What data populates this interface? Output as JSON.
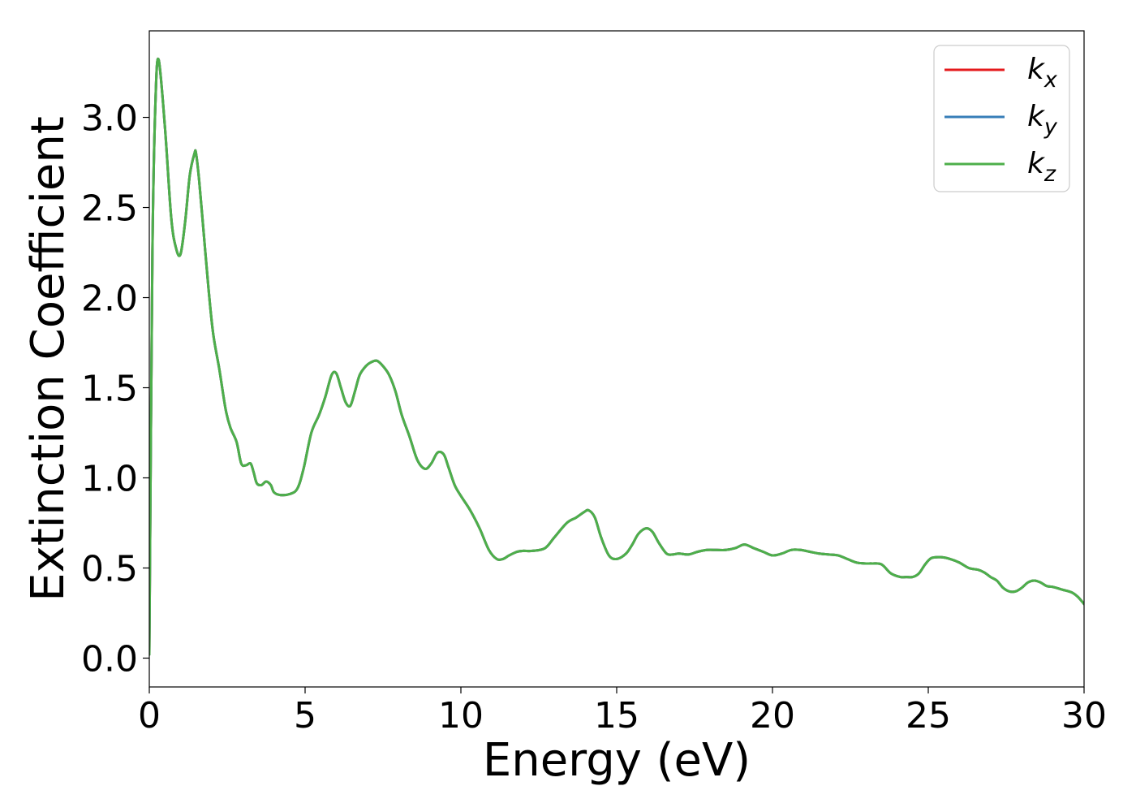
{
  "chart_data": {
    "type": "line",
    "title": "",
    "xlabel": "Energy (eV)",
    "ylabel": "Extinction Coefficient",
    "xlim": [
      0,
      30
    ],
    "ylim": [
      -0.16,
      3.48
    ],
    "xticks": [
      0,
      5,
      10,
      15,
      20,
      25,
      30
    ],
    "xtick_labels": [
      "0",
      "5",
      "10",
      "15",
      "20",
      "25",
      "30"
    ],
    "yticks": [
      0.0,
      0.5,
      1.0,
      1.5,
      2.0,
      2.5,
      3.0
    ],
    "ytick_labels": [
      "0.0",
      "0.5",
      "1.0",
      "1.5",
      "2.0",
      "2.5",
      "3.0"
    ],
    "grid": false,
    "legend_position": "top-right",
    "series": [
      {
        "name": "k",
        "subscript": "x",
        "color": "#e41a1c",
        "x": [
          0,
          0.1,
          0.2,
          0.3,
          0.5,
          0.7,
          0.85,
          1.0,
          1.15,
          1.3,
          1.45,
          1.5,
          1.6,
          1.75,
          1.9,
          2.05,
          2.25,
          2.45,
          2.6,
          2.8,
          2.95,
          3.1,
          3.25,
          3.35,
          3.45,
          3.6,
          3.75,
          3.9,
          4.0,
          4.2,
          4.5,
          4.75,
          4.95,
          5.2,
          5.45,
          5.65,
          5.85,
          6.0,
          6.15,
          6.3,
          6.45,
          6.6,
          6.75,
          6.95,
          7.1,
          7.3,
          7.5,
          7.7,
          7.9,
          8.1,
          8.35,
          8.6,
          8.85,
          9.05,
          9.25,
          9.45,
          9.6,
          9.8,
          10.0,
          10.3,
          10.6,
          10.9,
          11.15,
          11.35,
          11.55,
          11.8,
          12.0,
          12.3,
          12.7,
          13.0,
          13.4,
          13.7,
          13.95,
          14.1,
          14.3,
          14.5,
          14.75,
          15.0,
          15.3,
          15.5,
          15.7,
          15.95,
          16.15,
          16.35,
          16.6,
          16.8,
          17.0,
          17.3,
          17.6,
          17.9,
          18.2,
          18.5,
          18.8,
          19.1,
          19.4,
          19.7,
          20.0,
          20.3,
          20.6,
          20.9,
          21.2,
          21.5,
          21.8,
          22.1,
          22.4,
          22.7,
          23.0,
          23.2,
          23.5,
          23.8,
          24.1,
          24.3,
          24.5,
          24.7,
          24.9,
          25.1,
          25.4,
          25.7,
          26.0,
          26.3,
          26.6,
          26.8,
          27.0,
          27.2,
          27.4,
          27.6,
          27.8,
          28.0,
          28.2,
          28.4,
          28.6,
          28.8,
          29.0,
          29.3,
          29.6,
          29.8,
          30.0
        ],
        "y": [
          0.02,
          2.25,
          3.1,
          3.32,
          2.95,
          2.45,
          2.28,
          2.24,
          2.42,
          2.68,
          2.8,
          2.8,
          2.65,
          2.35,
          2.05,
          1.8,
          1.6,
          1.38,
          1.28,
          1.2,
          1.08,
          1.07,
          1.08,
          1.03,
          0.97,
          0.96,
          0.98,
          0.96,
          0.92,
          0.905,
          0.91,
          0.94,
          1.05,
          1.25,
          1.35,
          1.45,
          1.57,
          1.58,
          1.5,
          1.42,
          1.4,
          1.48,
          1.57,
          1.62,
          1.64,
          1.65,
          1.62,
          1.57,
          1.48,
          1.35,
          1.23,
          1.1,
          1.05,
          1.08,
          1.14,
          1.13,
          1.06,
          0.96,
          0.9,
          0.82,
          0.72,
          0.6,
          0.55,
          0.55,
          0.57,
          0.59,
          0.595,
          0.595,
          0.61,
          0.67,
          0.75,
          0.78,
          0.81,
          0.82,
          0.78,
          0.67,
          0.57,
          0.55,
          0.58,
          0.63,
          0.69,
          0.72,
          0.7,
          0.64,
          0.58,
          0.575,
          0.58,
          0.575,
          0.59,
          0.6,
          0.6,
          0.6,
          0.61,
          0.63,
          0.61,
          0.59,
          0.57,
          0.58,
          0.6,
          0.6,
          0.59,
          0.58,
          0.575,
          0.57,
          0.55,
          0.53,
          0.525,
          0.525,
          0.52,
          0.47,
          0.45,
          0.45,
          0.45,
          0.47,
          0.52,
          0.555,
          0.56,
          0.55,
          0.53,
          0.5,
          0.49,
          0.475,
          0.45,
          0.43,
          0.39,
          0.37,
          0.37,
          0.39,
          0.42,
          0.43,
          0.42,
          0.4,
          0.395,
          0.38,
          0.365,
          0.34,
          0.3
        ]
      },
      {
        "name": "k",
        "subscript": "y",
        "color": "#377eb8",
        "x": [
          0,
          0.1,
          0.2,
          0.3,
          0.5,
          0.7,
          0.85,
          1.0,
          1.15,
          1.3,
          1.45,
          1.5,
          1.6,
          1.75,
          1.9,
          2.05,
          2.25,
          2.45,
          2.6,
          2.8,
          2.95,
          3.1,
          3.25,
          3.35,
          3.45,
          3.6,
          3.75,
          3.9,
          4.0,
          4.2,
          4.5,
          4.75,
          4.95,
          5.2,
          5.45,
          5.65,
          5.85,
          6.0,
          6.15,
          6.3,
          6.45,
          6.6,
          6.75,
          6.95,
          7.1,
          7.3,
          7.5,
          7.7,
          7.9,
          8.1,
          8.35,
          8.6,
          8.85,
          9.05,
          9.25,
          9.45,
          9.6,
          9.8,
          10.0,
          10.3,
          10.6,
          10.9,
          11.15,
          11.35,
          11.55,
          11.8,
          12.0,
          12.3,
          12.7,
          13.0,
          13.4,
          13.7,
          13.95,
          14.1,
          14.3,
          14.5,
          14.75,
          15.0,
          15.3,
          15.5,
          15.7,
          15.95,
          16.15,
          16.35,
          16.6,
          16.8,
          17.0,
          17.3,
          17.6,
          17.9,
          18.2,
          18.5,
          18.8,
          19.1,
          19.4,
          19.7,
          20.0,
          20.3,
          20.6,
          20.9,
          21.2,
          21.5,
          21.8,
          22.1,
          22.4,
          22.7,
          23.0,
          23.2,
          23.5,
          23.8,
          24.1,
          24.3,
          24.5,
          24.7,
          24.9,
          25.1,
          25.4,
          25.7,
          26.0,
          26.3,
          26.6,
          26.8,
          27.0,
          27.2,
          27.4,
          27.6,
          27.8,
          28.0,
          28.2,
          28.4,
          28.6,
          28.8,
          29.0,
          29.3,
          29.6,
          29.8,
          30.0
        ],
        "y": [
          0.02,
          2.25,
          3.1,
          3.32,
          2.95,
          2.45,
          2.28,
          2.24,
          2.42,
          2.68,
          2.8,
          2.8,
          2.65,
          2.35,
          2.05,
          1.8,
          1.6,
          1.38,
          1.28,
          1.2,
          1.08,
          1.07,
          1.08,
          1.03,
          0.97,
          0.96,
          0.98,
          0.96,
          0.92,
          0.905,
          0.91,
          0.94,
          1.05,
          1.25,
          1.35,
          1.45,
          1.57,
          1.58,
          1.5,
          1.42,
          1.4,
          1.48,
          1.57,
          1.62,
          1.64,
          1.65,
          1.62,
          1.57,
          1.48,
          1.35,
          1.23,
          1.1,
          1.05,
          1.08,
          1.14,
          1.13,
          1.06,
          0.96,
          0.9,
          0.82,
          0.72,
          0.6,
          0.55,
          0.55,
          0.57,
          0.59,
          0.595,
          0.595,
          0.61,
          0.67,
          0.75,
          0.78,
          0.81,
          0.82,
          0.78,
          0.67,
          0.57,
          0.55,
          0.58,
          0.63,
          0.69,
          0.72,
          0.7,
          0.64,
          0.58,
          0.575,
          0.58,
          0.575,
          0.59,
          0.6,
          0.6,
          0.6,
          0.61,
          0.63,
          0.61,
          0.59,
          0.57,
          0.58,
          0.6,
          0.6,
          0.59,
          0.58,
          0.575,
          0.57,
          0.55,
          0.53,
          0.525,
          0.525,
          0.52,
          0.47,
          0.45,
          0.45,
          0.45,
          0.47,
          0.52,
          0.555,
          0.56,
          0.55,
          0.53,
          0.5,
          0.49,
          0.475,
          0.45,
          0.43,
          0.39,
          0.37,
          0.37,
          0.39,
          0.42,
          0.43,
          0.42,
          0.4,
          0.395,
          0.38,
          0.365,
          0.34,
          0.3
        ]
      },
      {
        "name": "k",
        "subscript": "z",
        "color": "#4daf4a",
        "x": [
          0,
          0.1,
          0.2,
          0.3,
          0.5,
          0.7,
          0.85,
          1.0,
          1.15,
          1.3,
          1.45,
          1.5,
          1.6,
          1.75,
          1.9,
          2.05,
          2.25,
          2.45,
          2.6,
          2.8,
          2.95,
          3.1,
          3.25,
          3.35,
          3.45,
          3.6,
          3.75,
          3.9,
          4.0,
          4.2,
          4.5,
          4.75,
          4.95,
          5.2,
          5.45,
          5.65,
          5.85,
          6.0,
          6.15,
          6.3,
          6.45,
          6.6,
          6.75,
          6.95,
          7.1,
          7.3,
          7.5,
          7.7,
          7.9,
          8.1,
          8.35,
          8.6,
          8.85,
          9.05,
          9.25,
          9.45,
          9.6,
          9.8,
          10.0,
          10.3,
          10.6,
          10.9,
          11.15,
          11.35,
          11.55,
          11.8,
          12.0,
          12.3,
          12.7,
          13.0,
          13.4,
          13.7,
          13.95,
          14.1,
          14.3,
          14.5,
          14.75,
          15.0,
          15.3,
          15.5,
          15.7,
          15.95,
          16.15,
          16.35,
          16.6,
          16.8,
          17.0,
          17.3,
          17.6,
          17.9,
          18.2,
          18.5,
          18.8,
          19.1,
          19.4,
          19.7,
          20.0,
          20.3,
          20.6,
          20.9,
          21.2,
          21.5,
          21.8,
          22.1,
          22.4,
          22.7,
          23.0,
          23.2,
          23.5,
          23.8,
          24.1,
          24.3,
          24.5,
          24.7,
          24.9,
          25.1,
          25.4,
          25.7,
          26.0,
          26.3,
          26.6,
          26.8,
          27.0,
          27.2,
          27.4,
          27.6,
          27.8,
          28.0,
          28.2,
          28.4,
          28.6,
          28.8,
          29.0,
          29.3,
          29.6,
          29.8,
          30.0
        ],
        "y": [
          0.02,
          2.25,
          3.1,
          3.32,
          2.95,
          2.45,
          2.28,
          2.24,
          2.42,
          2.68,
          2.8,
          2.8,
          2.65,
          2.35,
          2.05,
          1.8,
          1.6,
          1.38,
          1.28,
          1.2,
          1.08,
          1.07,
          1.08,
          1.03,
          0.97,
          0.96,
          0.98,
          0.96,
          0.92,
          0.905,
          0.91,
          0.94,
          1.05,
          1.25,
          1.35,
          1.45,
          1.57,
          1.58,
          1.5,
          1.42,
          1.4,
          1.48,
          1.57,
          1.62,
          1.64,
          1.65,
          1.62,
          1.57,
          1.48,
          1.35,
          1.23,
          1.1,
          1.05,
          1.08,
          1.14,
          1.13,
          1.06,
          0.96,
          0.9,
          0.82,
          0.72,
          0.6,
          0.55,
          0.55,
          0.57,
          0.59,
          0.595,
          0.595,
          0.61,
          0.67,
          0.75,
          0.78,
          0.81,
          0.82,
          0.78,
          0.67,
          0.57,
          0.55,
          0.58,
          0.63,
          0.69,
          0.72,
          0.7,
          0.64,
          0.58,
          0.575,
          0.58,
          0.575,
          0.59,
          0.6,
          0.6,
          0.6,
          0.61,
          0.63,
          0.61,
          0.59,
          0.57,
          0.58,
          0.6,
          0.6,
          0.59,
          0.58,
          0.575,
          0.57,
          0.55,
          0.53,
          0.525,
          0.525,
          0.52,
          0.47,
          0.45,
          0.45,
          0.45,
          0.47,
          0.52,
          0.555,
          0.56,
          0.55,
          0.53,
          0.5,
          0.49,
          0.475,
          0.45,
          0.43,
          0.39,
          0.37,
          0.37,
          0.39,
          0.42,
          0.43,
          0.42,
          0.4,
          0.395,
          0.38,
          0.365,
          0.34,
          0.3
        ]
      }
    ]
  }
}
